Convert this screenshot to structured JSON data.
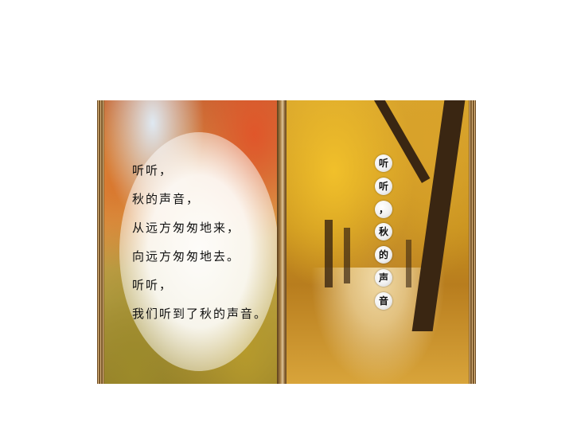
{
  "poem": {
    "lines": [
      "听听，",
      "秋的声音，",
      "从远方匆匆地来，",
      "向远方匆匆地去。",
      "听听，",
      "我们听到了秋的声音。"
    ]
  },
  "title_vertical": [
    "听",
    "听",
    "，",
    "秋",
    "的",
    "声",
    "音"
  ]
}
